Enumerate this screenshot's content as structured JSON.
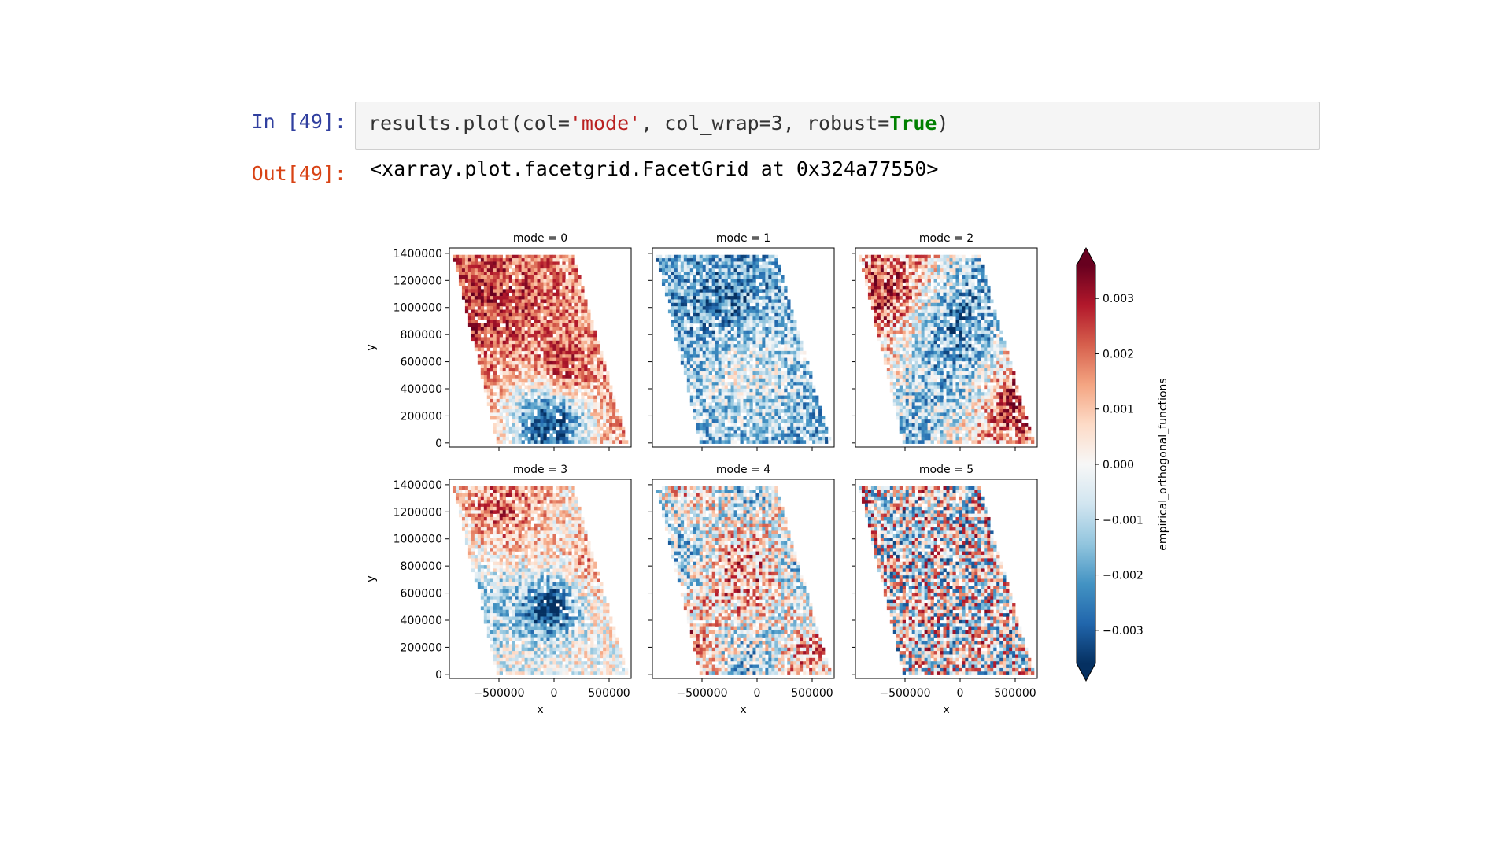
{
  "cell": {
    "in_prompt": "In [49]:",
    "out_prompt": "Out[49]:",
    "code": {
      "func": "results.plot(col=",
      "str": "'mode'",
      "mid": ", col_wrap=3, robust=",
      "kw": "True",
      "end": ")"
    },
    "output_text": "<xarray.plot.facetgrid.FacetGrid at 0x324a77550>"
  },
  "colors": {
    "code_string": "#ba2121",
    "code_keyword": "#008000",
    "in_prompt": "#303f9f",
    "out_prompt": "#d84315"
  },
  "chart_data": {
    "type": "heatmap",
    "colormap": "RdBu_r",
    "xlabel": "x",
    "ylabel": "y",
    "colorbar_label": "empirical_orthogonal_functions",
    "colorbar_ticks": [
      "0.003",
      "0.002",
      "0.001",
      "0.000",
      "−0.001",
      "−0.002",
      "−0.003"
    ],
    "colorbar_values": [
      0.003,
      0.002,
      0.001,
      0.0,
      -0.001,
      -0.002,
      -0.003
    ],
    "colorbar_range": [
      -0.0036,
      0.0036
    ],
    "x_ticks": [
      "−500000",
      "0",
      "500000"
    ],
    "y_ticks": [
      "1400000",
      "1200000",
      "1000000",
      "800000",
      "600000",
      "400000",
      "200000",
      "0"
    ],
    "x_range": [
      -950000,
      700000
    ],
    "y_range": [
      -30000,
      1440000
    ],
    "panels": [
      {
        "title": "mode = 0",
        "mode": 0
      },
      {
        "title": "mode = 1",
        "mode": 1
      },
      {
        "title": "mode = 2",
        "mode": 2
      },
      {
        "title": "mode = 3",
        "mode": 3
      },
      {
        "title": "mode = 4",
        "mode": 4
      },
      {
        "title": "mode = 5",
        "mode": 5
      }
    ]
  }
}
